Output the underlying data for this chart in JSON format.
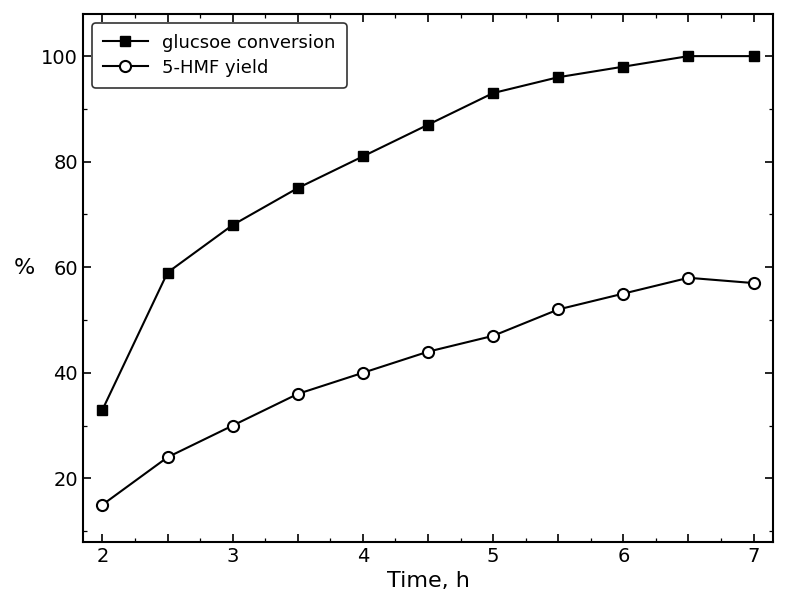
{
  "glucose_x": [
    2,
    2.5,
    3,
    3.5,
    4,
    4.5,
    5,
    5.5,
    6,
    6.5,
    7
  ],
  "glucose_y": [
    33,
    59,
    68,
    75,
    81,
    87,
    93,
    96,
    98,
    100,
    100
  ],
  "hmf_x": [
    2,
    2.5,
    3,
    3.5,
    4,
    4.5,
    5,
    5.5,
    6,
    6.5,
    7
  ],
  "hmf_y": [
    15,
    24,
    30,
    36,
    40,
    44,
    47,
    52,
    55,
    58,
    57
  ],
  "xlabel": "Time, h",
  "ylabel": "%",
  "xlim": [
    1.85,
    7.15
  ],
  "ylim": [
    8,
    108
  ],
  "xticks": [
    2,
    2.5,
    3,
    3.5,
    4,
    4.5,
    5,
    5.5,
    6,
    6.5,
    7
  ],
  "xtick_labels": [
    "2",
    "",
    "3",
    "",
    "4",
    "",
    "5",
    "",
    "6",
    "",
    "7"
  ],
  "yticks": [
    20,
    40,
    60,
    80,
    100
  ],
  "legend1": "glucsoe conversion",
  "legend2": "5-HMF yield",
  "line_color": "#000000",
  "bg_color": "#ffffff",
  "fig_width": 7.87,
  "fig_height": 6.05,
  "dpi": 100
}
